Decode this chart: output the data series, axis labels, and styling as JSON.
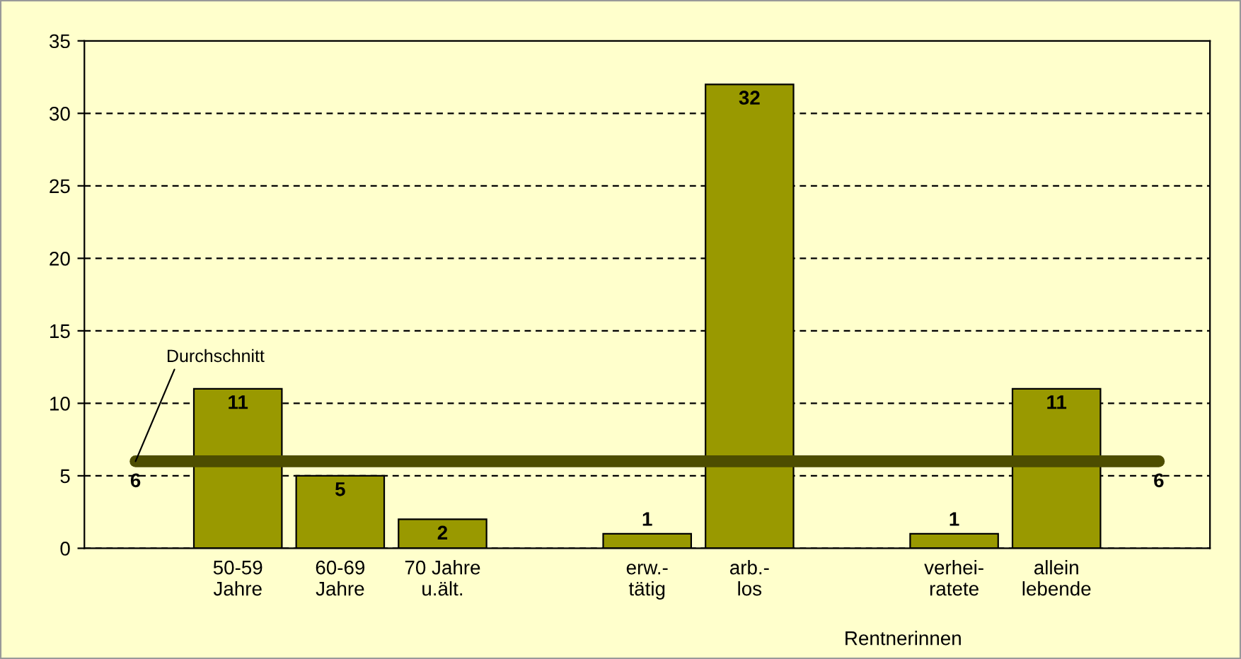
{
  "chart_data": {
    "type": "bar",
    "categories": [
      null,
      "50-59\nJahre",
      "60-69\nJahre",
      "70 Jahre\nu.ält.",
      null,
      "erw.-\ntätig",
      "arb.-\nlos",
      null,
      "verhei-\nratete",
      "allein\nlebende",
      null
    ],
    "series": [
      {
        "color": "#999900",
        "values": [
          null,
          11,
          5,
          2,
          null,
          1,
          32,
          null,
          1,
          11,
          null
        ],
        "value_labels": [
          null,
          "11",
          "5",
          "2",
          null,
          "1",
          "32",
          null,
          "1",
          "11",
          null
        ]
      },
      {
        "type": "line",
        "name": "Durchschnitt",
        "color": "#4d4d00",
        "values": [
          6,
          6,
          6,
          6,
          6,
          6,
          6,
          6,
          6,
          6,
          6
        ],
        "value_labels": [
          "6",
          null,
          null,
          null,
          null,
          null,
          null,
          null,
          null,
          null,
          "6"
        ]
      }
    ],
    "annotations": [
      "Rentnerinnen"
    ],
    "ylim": [
      0,
      35
    ],
    "yticks": [
      0,
      5,
      10,
      15,
      20,
      25,
      30,
      35
    ],
    "grid": "y",
    "legend": false
  }
}
